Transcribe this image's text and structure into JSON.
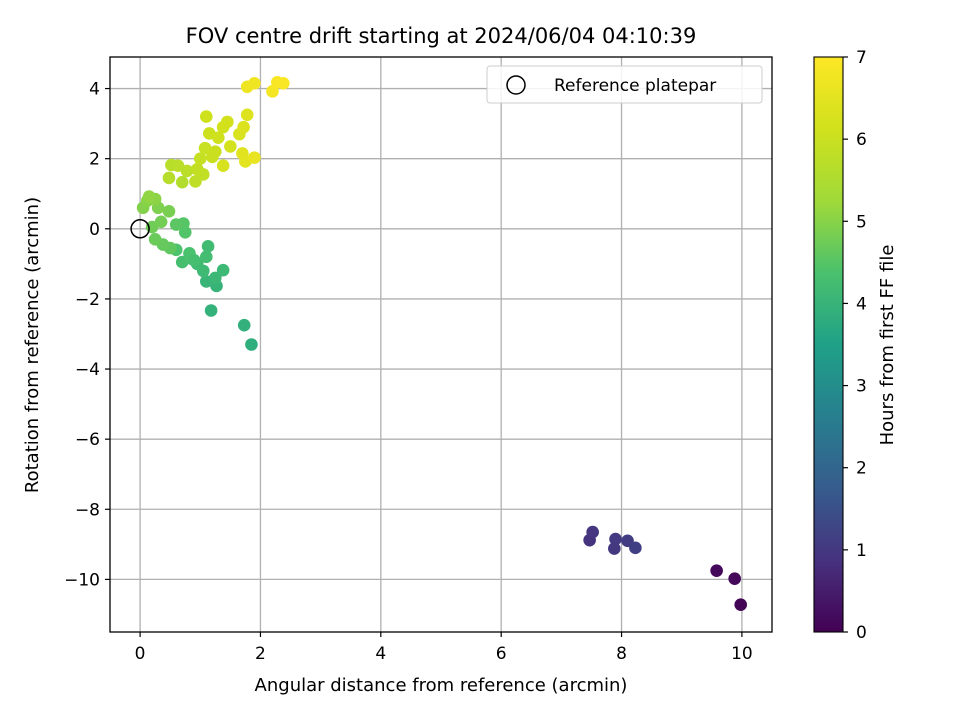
{
  "chart_data": {
    "type": "scatter",
    "title": "FOV centre drift starting at 2024/06/04 04:10:39",
    "xlabel": "Angular distance from reference (arcmin)",
    "ylabel": "Rotation from reference (arcmin)",
    "xlim": [
      -0.5,
      10.5
    ],
    "ylim": [
      -11.5,
      4.9
    ],
    "xticks": [
      0,
      2,
      4,
      6,
      8,
      10
    ],
    "yticks": [
      -10,
      -8,
      -6,
      -4,
      -2,
      0,
      2,
      4
    ],
    "xtick_labels": [
      "0",
      "2",
      "4",
      "6",
      "8",
      "10"
    ],
    "ytick_labels": [
      "−10",
      "−8",
      "−6",
      "−4",
      "−2",
      "0",
      "2",
      "4"
    ],
    "grid": true,
    "legend": {
      "position": "top-right",
      "label": "Reference platepar"
    },
    "reference_point": {
      "x": 0,
      "y": 0
    },
    "colorbar": {
      "label": "Hours from first FF file",
      "range": [
        0,
        7
      ],
      "ticks": [
        0,
        1,
        2,
        3,
        4,
        5,
        6,
        7
      ],
      "tick_labels": [
        "0",
        "1",
        "2",
        "3",
        "4",
        "5",
        "6",
        "7"
      ],
      "colormap": "viridis"
    },
    "points": [
      {
        "x": 9.98,
        "y": -10.72,
        "h": 0.05
      },
      {
        "x": 9.88,
        "y": -9.98,
        "h": 0.1
      },
      {
        "x": 9.58,
        "y": -9.75,
        "h": 0.15
      },
      {
        "x": 7.47,
        "y": -8.88,
        "h": 0.9
      },
      {
        "x": 7.52,
        "y": -8.65,
        "h": 0.95
      },
      {
        "x": 7.88,
        "y": -9.12,
        "h": 1.0
      },
      {
        "x": 7.9,
        "y": -8.85,
        "h": 1.05
      },
      {
        "x": 8.1,
        "y": -8.9,
        "h": 1.1
      },
      {
        "x": 8.23,
        "y": -9.1,
        "h": 1.15
      },
      {
        "x": 1.85,
        "y": -3.3,
        "h": 3.85
      },
      {
        "x": 1.73,
        "y": -2.75,
        "h": 3.9
      },
      {
        "x": 1.18,
        "y": -2.33,
        "h": 3.95
      },
      {
        "x": 1.27,
        "y": -1.63,
        "h": 4.0
      },
      {
        "x": 1.1,
        "y": -1.5,
        "h": 4.05
      },
      {
        "x": 1.25,
        "y": -1.4,
        "h": 4.1
      },
      {
        "x": 1.38,
        "y": -1.18,
        "h": 4.12
      },
      {
        "x": 1.05,
        "y": -1.2,
        "h": 4.15
      },
      {
        "x": 0.95,
        "y": -1.0,
        "h": 4.2
      },
      {
        "x": 1.13,
        "y": -0.5,
        "h": 4.22
      },
      {
        "x": 1.1,
        "y": -0.8,
        "h": 4.25
      },
      {
        "x": 0.7,
        "y": -0.95,
        "h": 4.3
      },
      {
        "x": 0.85,
        "y": -0.85,
        "h": 4.35
      },
      {
        "x": 0.6,
        "y": -0.6,
        "h": 4.4
      },
      {
        "x": 0.75,
        "y": -0.1,
        "h": 4.45
      },
      {
        "x": 0.72,
        "y": 0.15,
        "h": 4.5
      },
      {
        "x": 0.6,
        "y": 0.12,
        "h": 4.55
      },
      {
        "x": 0.5,
        "y": -0.55,
        "h": 4.6
      },
      {
        "x": 0.38,
        "y": -0.45,
        "h": 4.65
      },
      {
        "x": 0.25,
        "y": -0.3,
        "h": 4.7
      },
      {
        "x": 0.2,
        "y": 0.05,
        "h": 4.75
      },
      {
        "x": 0.35,
        "y": 0.2,
        "h": 4.8
      },
      {
        "x": 0.48,
        "y": 0.5,
        "h": 4.85
      },
      {
        "x": 0.3,
        "y": 0.6,
        "h": 4.9
      },
      {
        "x": 0.05,
        "y": 0.6,
        "h": 4.95
      },
      {
        "x": 0.12,
        "y": 0.8,
        "h": 5.0
      },
      {
        "x": 0.25,
        "y": 0.85,
        "h": 5.05
      },
      {
        "x": 0.15,
        "y": 0.92,
        "h": 5.1
      },
      {
        "x": 0.82,
        "y": -0.7,
        "h": 4.38
      },
      {
        "x": 0.9,
        "y": -0.9,
        "h": 4.28
      },
      {
        "x": 0.7,
        "y": 1.33,
        "h": 5.6
      },
      {
        "x": 0.48,
        "y": 1.45,
        "h": 5.65
      },
      {
        "x": 0.52,
        "y": 1.82,
        "h": 5.7
      },
      {
        "x": 0.63,
        "y": 1.8,
        "h": 5.72
      },
      {
        "x": 0.78,
        "y": 1.65,
        "h": 5.75
      },
      {
        "x": 0.92,
        "y": 1.35,
        "h": 5.8
      },
      {
        "x": 1.05,
        "y": 1.55,
        "h": 5.85
      },
      {
        "x": 0.95,
        "y": 1.7,
        "h": 5.88
      },
      {
        "x": 1.0,
        "y": 2.0,
        "h": 5.92
      },
      {
        "x": 1.08,
        "y": 2.3,
        "h": 5.96
      },
      {
        "x": 1.2,
        "y": 2.05,
        "h": 6.0
      },
      {
        "x": 1.25,
        "y": 2.2,
        "h": 6.02
      },
      {
        "x": 1.15,
        "y": 2.72,
        "h": 6.05
      },
      {
        "x": 1.1,
        "y": 3.2,
        "h": 6.08
      },
      {
        "x": 1.3,
        "y": 2.6,
        "h": 6.1
      },
      {
        "x": 1.38,
        "y": 2.9,
        "h": 6.15
      },
      {
        "x": 1.45,
        "y": 3.05,
        "h": 6.18
      },
      {
        "x": 1.5,
        "y": 2.35,
        "h": 6.2
      },
      {
        "x": 1.38,
        "y": 1.8,
        "h": 6.25
      },
      {
        "x": 1.65,
        "y": 2.7,
        "h": 6.3
      },
      {
        "x": 1.72,
        "y": 2.9,
        "h": 6.35
      },
      {
        "x": 1.78,
        "y": 3.25,
        "h": 6.4
      },
      {
        "x": 1.7,
        "y": 2.15,
        "h": 6.45
      },
      {
        "x": 1.75,
        "y": 1.92,
        "h": 6.5
      },
      {
        "x": 1.9,
        "y": 2.03,
        "h": 6.6
      },
      {
        "x": 1.78,
        "y": 4.05,
        "h": 6.7
      },
      {
        "x": 1.9,
        "y": 4.15,
        "h": 6.75
      },
      {
        "x": 2.2,
        "y": 3.92,
        "h": 6.85
      },
      {
        "x": 2.28,
        "y": 4.18,
        "h": 6.9
      },
      {
        "x": 2.38,
        "y": 4.15,
        "h": 6.95
      }
    ]
  }
}
